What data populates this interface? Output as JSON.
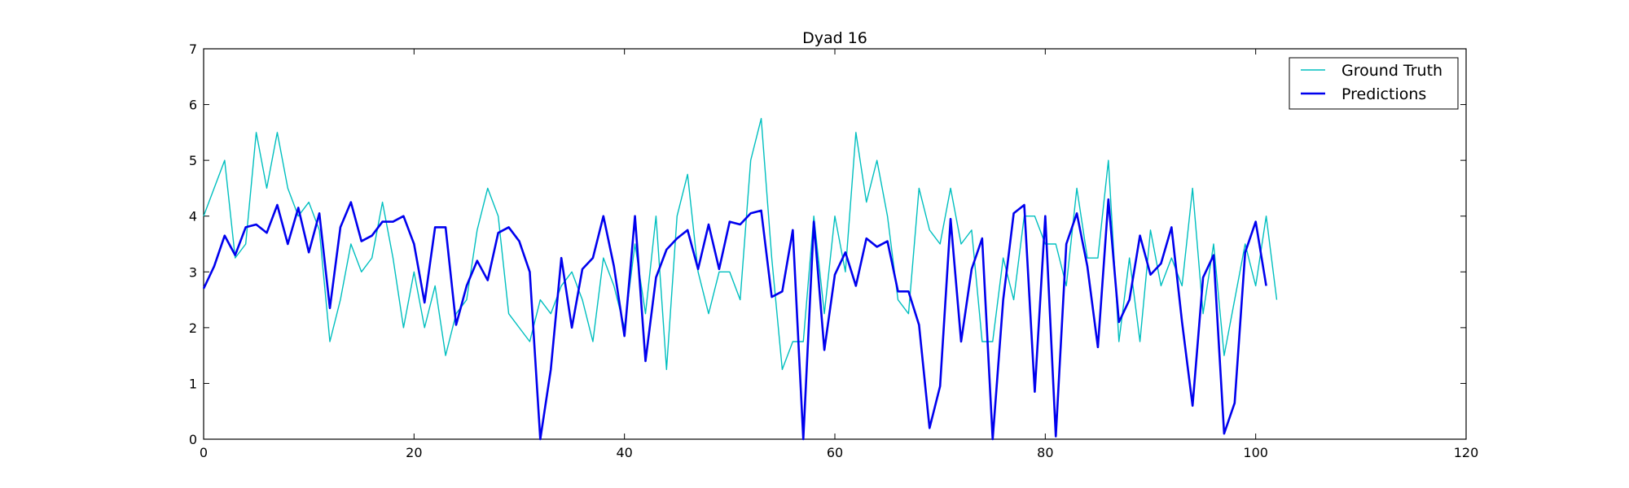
{
  "chart_data": {
    "type": "line",
    "title": "Dyad 16",
    "xlabel": "",
    "ylabel": "",
    "xlim": [
      0,
      120
    ],
    "ylim": [
      0,
      7
    ],
    "x_ticks": [
      0,
      20,
      40,
      60,
      80,
      100,
      120
    ],
    "y_ticks": [
      0,
      1,
      2,
      3,
      4,
      5,
      6,
      7
    ],
    "grid": false,
    "legend_position": "top-right",
    "series": [
      {
        "name": "Ground Truth",
        "color": "#00bfbf",
        "values": [
          4.0,
          4.5,
          5.0,
          3.25,
          3.5,
          5.5,
          4.5,
          5.5,
          4.5,
          4.0,
          4.25,
          3.75,
          1.75,
          2.5,
          3.5,
          3.0,
          3.25,
          4.25,
          3.25,
          2.0,
          3.0,
          2.0,
          2.75,
          1.5,
          2.25,
          2.5,
          3.75,
          4.5,
          4.0,
          2.25,
          2.0,
          1.75,
          2.5,
          2.25,
          2.75,
          3.0,
          2.5,
          1.75,
          3.25,
          2.75,
          2.0,
          3.5,
          2.25,
          4.0,
          1.25,
          4.0,
          4.75,
          3.0,
          2.25,
          3.0,
          3.0,
          2.5,
          5.0,
          5.75,
          3.25,
          1.25,
          1.75,
          1.75,
          4.0,
          2.25,
          4.0,
          3.0,
          5.5,
          4.25,
          5.0,
          4.0,
          2.5,
          2.25,
          4.5,
          3.75,
          3.5,
          4.5,
          3.5,
          3.75,
          1.75,
          1.75,
          3.25,
          2.5,
          4.0,
          4.0,
          3.5,
          3.5,
          2.75,
          4.5,
          3.25,
          3.25,
          5.0,
          1.75,
          3.25,
          1.75,
          3.75,
          2.75,
          3.25,
          2.75,
          4.5,
          2.25,
          3.5,
          1.5,
          2.5,
          3.5,
          2.75,
          4.0,
          2.5
        ]
      },
      {
        "name": "Predictions",
        "color": "#0000ee",
        "values": [
          2.7,
          3.1,
          3.65,
          3.3,
          3.8,
          3.85,
          3.7,
          4.2,
          3.5,
          4.15,
          3.35,
          4.05,
          2.35,
          3.8,
          4.25,
          3.55,
          3.65,
          3.9,
          3.9,
          4.0,
          3.5,
          2.45,
          3.8,
          3.8,
          2.05,
          2.75,
          3.2,
          2.85,
          3.7,
          3.8,
          3.55,
          3.0,
          0.0,
          1.25,
          3.25,
          2.0,
          3.05,
          3.25,
          4.0,
          3.1,
          1.85,
          4.0,
          1.4,
          2.9,
          3.4,
          3.6,
          3.75,
          3.05,
          3.85,
          3.05,
          3.9,
          3.85,
          4.05,
          4.1,
          2.55,
          2.65,
          3.75,
          0.0,
          3.9,
          1.6,
          2.95,
          3.35,
          2.75,
          3.6,
          3.45,
          3.55,
          2.65,
          2.65,
          2.05,
          0.2,
          0.95,
          3.95,
          1.75,
          3.05,
          3.6,
          0.0,
          2.5,
          4.05,
          4.2,
          0.85,
          4.0,
          0.05,
          3.5,
          4.05,
          3.1,
          1.65,
          4.3,
          2.1,
          2.5,
          3.65,
          2.95,
          3.15,
          3.8,
          2.1,
          0.6,
          2.9,
          3.3,
          0.1,
          0.65,
          3.35,
          3.9,
          2.75
        ]
      }
    ]
  }
}
